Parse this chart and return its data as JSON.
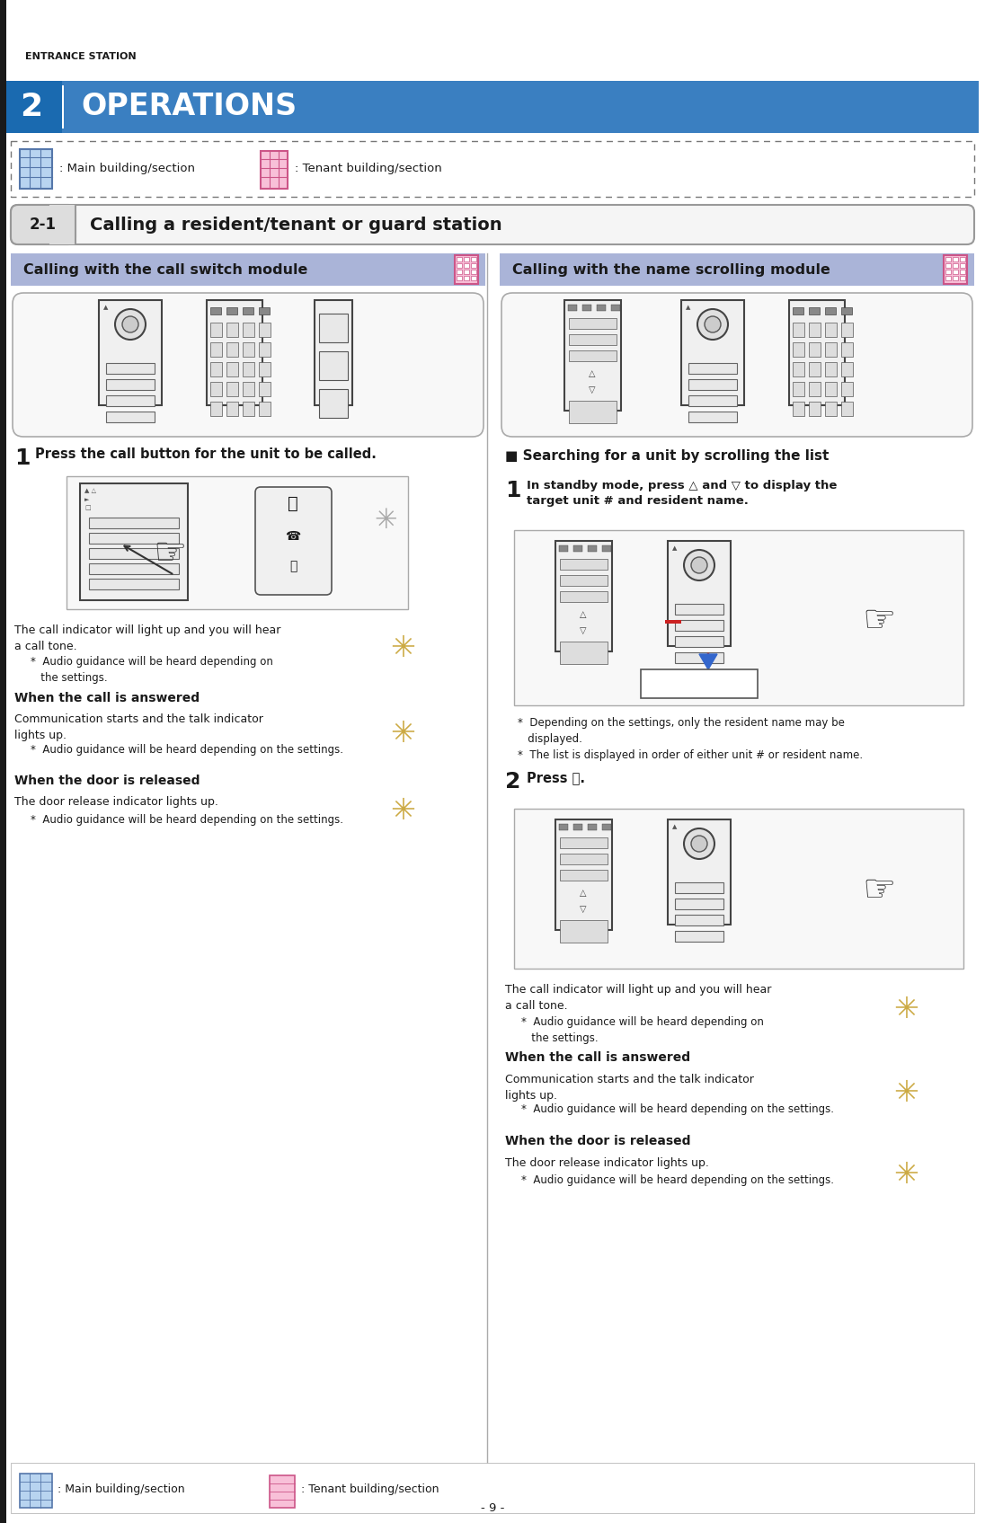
{
  "page_bg": "#ffffff",
  "page_width": 10.96,
  "page_height": 16.95,
  "left_bar_color": "#1a1a1a",
  "entrance_station_text": "ENTRANCE STATION",
  "ops_bar_color": "#3a7fc1",
  "ops_number": "2",
  "ops_title": "OPERATIONS",
  "main_building_text": ": Main building/section",
  "tenant_building_text": ": Tenant building/section",
  "section_21_label": "2-1",
  "section_21_title": "Calling a resident/tenant or guard station",
  "col_header_bg": "#aab4d8",
  "col_left_title": "Calling with the call switch module",
  "col_right_title": "Calling with the name scrolling module",
  "step1_left_text": "Press the call button for the unit to be called.",
  "call_indicator_text1": "The call indicator will light up and you will hear\na call tone.",
  "call_indicator_bullet": "*  Audio guidance will be heard depending on\n   the settings.",
  "when_answered_header": "When the call is answered",
  "when_answered_text": "Communication starts and the talk indicator\nlights up.",
  "when_answered_bullet": "*  Audio guidance will be heard depending on the settings.",
  "when_door_header": "When the door is released",
  "when_door_text": "The door release indicator lights up.",
  "when_door_bullet": "*  Audio guidance will be heard depending on the settings.",
  "search_header": "■ Searching for a unit by scrolling the list",
  "step1_right_text": "In standby mode, press △ and ▽ to display the\ntarget unit # and resident name.",
  "note1_right": "*  Depending on the settings, only the resident name may be\n   displayed.",
  "note2_right": "*  The list is displayed in order of either unit # or resident name.",
  "step2_right_text": "Press ⓒ.",
  "call_indicator_right1": "The call indicator will light up and you will hear\na call tone.",
  "call_indicator_right_bullet": "*  Audio guidance will be heard depending on\n   the settings.",
  "when_answered_right_header": "When the call is answered",
  "when_answered_right_text": "Communication starts and the talk indicator\nlights up.",
  "when_answered_right_bullet": "*  Audio guidance will be heard depending on the settings.",
  "when_door_right_header": "When the door is released",
  "when_door_right_text": "The door release indicator lights up.",
  "when_door_right_bullet": "*  Audio guidance will be heard depending on the settings.",
  "page_number": "- 9 -",
  "text_color": "#1a1a1a",
  "icon_main_color": "#5599cc",
  "icon_tenant_color": "#ee66aa"
}
